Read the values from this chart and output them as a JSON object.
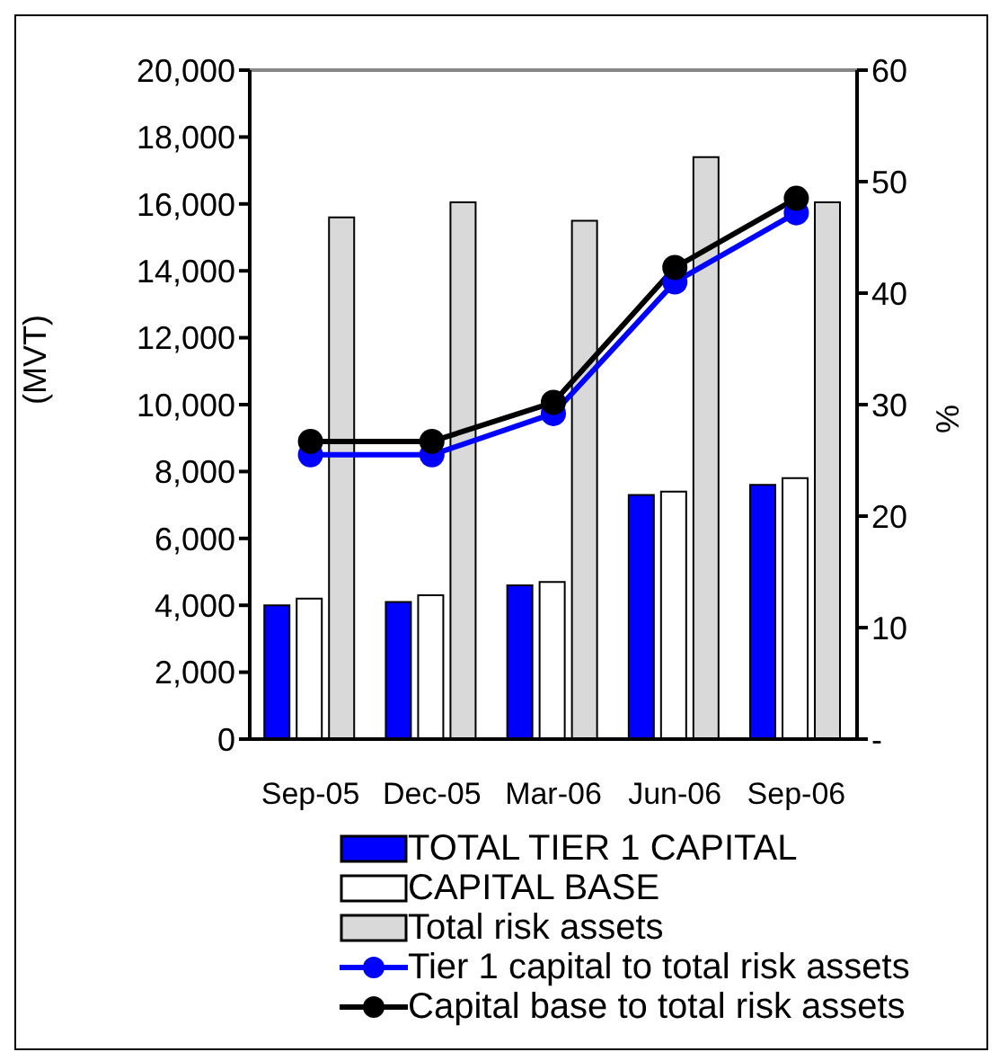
{
  "chart_data": {
    "type": "bar",
    "ylabel": "(MVT)",
    "y2label": "%",
    "categories": [
      "Sep-05",
      "Dec-05",
      "Mar-06",
      "Jun-06",
      "Sep-06"
    ],
    "series": [
      {
        "name": "TOTAL TIER 1 CAPITAL",
        "color": "#0000ff",
        "values": [
          4000,
          4100,
          4600,
          7300,
          7600
        ]
      },
      {
        "name": "CAPITAL BASE",
        "color": "#ffffff",
        "values": [
          4200,
          4300,
          4700,
          7400,
          7800
        ]
      },
      {
        "name": "Total risk assets",
        "color": "#d9d9d9",
        "values": [
          15600,
          16050,
          15500,
          17400,
          16050
        ]
      },
      {
        "name": "Tier 1 capital to total risk assets",
        "type": "line",
        "axis": "y2",
        "color": "#0000ff",
        "values": [
          25.5,
          25.5,
          29.2,
          41,
          47.2
        ]
      },
      {
        "name": "Capital base to total risk assets",
        "type": "line",
        "axis": "y2",
        "color": "#000000",
        "values": [
          26.7,
          26.7,
          30.2,
          42.3,
          48.5
        ]
      }
    ],
    "ylim": [
      0,
      20000
    ],
    "yticks": [
      0,
      {
        "value": 2000,
        "label": "2,000"
      },
      {
        "value": 4000,
        "label": "4,000"
      },
      {
        "value": 6000,
        "label": "6,000"
      },
      {
        "value": 8000,
        "label": "8,000"
      },
      {
        "value": 10000,
        "label": "10,000"
      },
      {
        "value": 12000,
        "label": "12,000"
      },
      {
        "value": 14000,
        "label": "14,000"
      },
      {
        "value": 16000,
        "label": "16,000"
      },
      {
        "value": 18000,
        "label": "18,000"
      },
      {
        "value": 20000,
        "label": "20,000"
      }
    ],
    "y2lim": [
      0,
      60
    ],
    "y2ticks": [
      {
        "value": 0,
        "label": "-"
      },
      10,
      20,
      30,
      40,
      50,
      60
    ],
    "legend": "bottom",
    "marker": "circle",
    "line_style": "solid"
  }
}
